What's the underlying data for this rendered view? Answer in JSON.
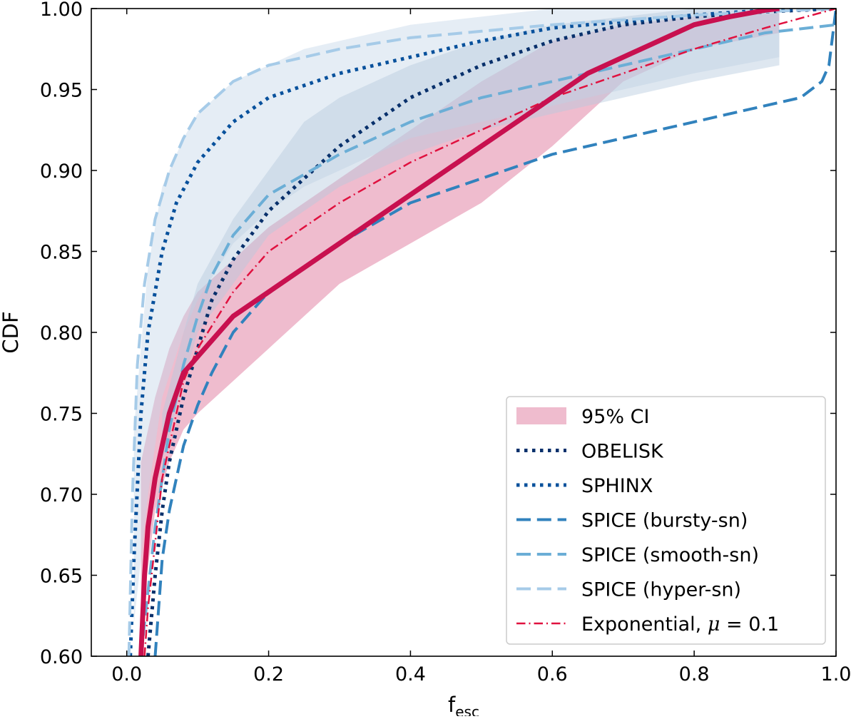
{
  "chart_data": {
    "type": "line",
    "title": "",
    "xlabel": {
      "base": "f",
      "sub": "esc"
    },
    "ylabel": "CDF",
    "xlim": [
      -0.05,
      1.0
    ],
    "ylim": [
      0.6,
      1.0
    ],
    "xticks": [
      0.0,
      0.2,
      0.4,
      0.6,
      0.8,
      1.0
    ],
    "xtick_labels": [
      "0.0",
      "0.2",
      "0.4",
      "0.6",
      "0.8",
      "1.0"
    ],
    "yticks": [
      0.6,
      0.65,
      0.7,
      0.75,
      0.8,
      0.85,
      0.9,
      0.95,
      1.0
    ],
    "ytick_labels": [
      "0.60",
      "0.65",
      "0.70",
      "0.75",
      "0.80",
      "0.85",
      "0.90",
      "0.95",
      "1.00"
    ],
    "grid": false,
    "legend_position": "lower-right",
    "bands": [
      {
        "name": "95% CI",
        "color": "#e58fae",
        "opacity": 0.6,
        "x": [
          0.02,
          0.04,
          0.06,
          0.08,
          0.1,
          0.15,
          0.2,
          0.25,
          0.3,
          0.4,
          0.5,
          0.6,
          0.7,
          0.8,
          0.92
        ],
        "lower": [
          0.62,
          0.69,
          0.72,
          0.74,
          0.75,
          0.77,
          0.79,
          0.81,
          0.83,
          0.855,
          0.88,
          0.915,
          0.955,
          0.975,
          0.985
        ],
        "upper": [
          0.72,
          0.76,
          0.79,
          0.81,
          0.825,
          0.845,
          0.865,
          0.88,
          0.895,
          0.925,
          0.955,
          0.98,
          0.99,
          0.995,
          0.997
        ]
      },
      {
        "name": "",
        "color": "#c5d6e8",
        "opacity": 0.45,
        "x": [
          0.01,
          0.03,
          0.05,
          0.08,
          0.1,
          0.15,
          0.2,
          0.25,
          0.3,
          0.4,
          0.5,
          0.6,
          0.7,
          0.8,
          0.92
        ],
        "lower": [
          0.62,
          0.7,
          0.76,
          0.8,
          0.82,
          0.855,
          0.875,
          0.89,
          0.9,
          0.92,
          0.93,
          0.94,
          0.95,
          0.96,
          0.97
        ],
        "upper": [
          0.74,
          0.84,
          0.89,
          0.92,
          0.935,
          0.955,
          0.965,
          0.975,
          0.98,
          0.99,
          0.995,
          1.0,
          1.0,
          1.0,
          1.0
        ]
      },
      {
        "name": "",
        "color": "#b5c9de",
        "opacity": 0.45,
        "x": [
          0.05,
          0.08,
          0.1,
          0.15,
          0.2,
          0.25,
          0.3,
          0.4,
          0.5,
          0.6,
          0.7,
          0.8,
          0.92
        ],
        "lower": [
          0.72,
          0.77,
          0.8,
          0.83,
          0.86,
          0.875,
          0.89,
          0.91,
          0.925,
          0.935,
          0.945,
          0.955,
          0.965
        ],
        "upper": [
          0.75,
          0.8,
          0.83,
          0.87,
          0.9,
          0.93,
          0.945,
          0.965,
          0.98,
          0.99,
          0.995,
          1.0,
          1.0
        ]
      }
    ],
    "series": [
      {
        "name": "OBELISK",
        "color": "#08306b",
        "style": "dotted",
        "width": 5,
        "x": [
          0.03,
          0.04,
          0.05,
          0.06,
          0.08,
          0.1,
          0.12,
          0.15,
          0.2,
          0.25,
          0.3,
          0.35,
          0.4,
          0.5,
          0.6,
          0.7,
          0.8,
          0.9,
          1.0
        ],
        "y": [
          0.6,
          0.65,
          0.69,
          0.72,
          0.76,
          0.79,
          0.82,
          0.845,
          0.875,
          0.895,
          0.915,
          0.93,
          0.945,
          0.965,
          0.98,
          0.99,
          0.995,
          0.998,
          1.0
        ]
      },
      {
        "name": "SPHINX",
        "color": "#08519c",
        "style": "dotted",
        "width": 5,
        "x": [
          0.005,
          0.01,
          0.02,
          0.03,
          0.05,
          0.07,
          0.1,
          0.15,
          0.2,
          0.3,
          0.4,
          0.5,
          0.6,
          0.7,
          0.8,
          0.9,
          1.0
        ],
        "y": [
          0.6,
          0.66,
          0.75,
          0.8,
          0.85,
          0.88,
          0.905,
          0.93,
          0.945,
          0.96,
          0.97,
          0.98,
          0.988,
          0.992,
          0.996,
          0.999,
          1.0
        ]
      },
      {
        "name": "SPICE (bursty-sn)",
        "color": "#3182bd",
        "style": "dashed",
        "width": 4,
        "x": [
          0.04,
          0.05,
          0.06,
          0.08,
          0.1,
          0.12,
          0.15,
          0.2,
          0.3,
          0.4,
          0.5,
          0.6,
          0.7,
          0.8,
          0.9,
          0.95,
          0.98,
          0.99,
          1.0
        ],
        "y": [
          0.6,
          0.66,
          0.69,
          0.73,
          0.755,
          0.775,
          0.8,
          0.825,
          0.855,
          0.88,
          0.895,
          0.91,
          0.92,
          0.93,
          0.94,
          0.945,
          0.955,
          0.965,
          1.0
        ]
      },
      {
        "name": "SPICE (smooth-sn)",
        "color": "#6baed6",
        "style": "dashed",
        "width": 4,
        "x": [
          0.02,
          0.03,
          0.04,
          0.06,
          0.08,
          0.1,
          0.12,
          0.15,
          0.2,
          0.3,
          0.4,
          0.5,
          0.6,
          0.7,
          0.8,
          0.9,
          1.0
        ],
        "y": [
          0.6,
          0.64,
          0.68,
          0.74,
          0.78,
          0.81,
          0.835,
          0.86,
          0.885,
          0.91,
          0.93,
          0.945,
          0.955,
          0.965,
          0.975,
          0.985,
          0.99
        ]
      },
      {
        "name": "SPICE (hyper-sn)",
        "color": "#a6cbe8",
        "style": "dashed",
        "width": 4,
        "x": [
          0.003,
          0.008,
          0.015,
          0.025,
          0.04,
          0.06,
          0.08,
          0.1,
          0.15,
          0.2,
          0.3,
          0.4,
          0.5,
          0.6,
          0.7,
          0.8,
          0.9,
          1.0
        ],
        "y": [
          0.6,
          0.7,
          0.78,
          0.83,
          0.87,
          0.9,
          0.92,
          0.935,
          0.955,
          0.965,
          0.975,
          0.982,
          0.986,
          0.99,
          0.993,
          0.996,
          0.998,
          1.0
        ]
      },
      {
        "name": "Exponential, μ = 0.1",
        "label_main": "Exponential, ",
        "label_mu": "μ",
        "label_eq": " = 0.1",
        "color": "#e0113f",
        "style": "dashdot",
        "width": 2.5,
        "x": [
          0.025,
          0.03,
          0.04,
          0.05,
          0.06,
          0.08,
          0.1,
          0.15,
          0.2,
          0.3,
          0.4,
          0.5,
          0.6,
          0.7,
          0.8,
          0.9,
          1.0
        ],
        "y": [
          0.6,
          0.63,
          0.67,
          0.71,
          0.73,
          0.77,
          0.79,
          0.825,
          0.85,
          0.88,
          0.905,
          0.925,
          0.945,
          0.96,
          0.975,
          0.988,
          1.0
        ]
      },
      {
        "name": "",
        "color": "#c8104f",
        "style": "solid",
        "width": 7,
        "x": [
          0.02,
          0.025,
          0.03,
          0.04,
          0.05,
          0.06,
          0.08,
          0.1,
          0.12,
          0.15,
          0.2,
          0.25,
          0.3,
          0.35,
          0.4,
          0.45,
          0.5,
          0.55,
          0.6,
          0.65,
          0.7,
          0.75,
          0.8,
          0.85,
          0.9,
          0.92
        ],
        "y": [
          0.6,
          0.65,
          0.68,
          0.71,
          0.73,
          0.75,
          0.775,
          0.785,
          0.795,
          0.81,
          0.825,
          0.84,
          0.855,
          0.87,
          0.885,
          0.9,
          0.915,
          0.93,
          0.945,
          0.96,
          0.97,
          0.98,
          0.99,
          0.995,
          0.999,
          1.0
        ]
      }
    ],
    "legend": [
      {
        "kind": "band",
        "ref": "95% CI",
        "label": "95% CI"
      },
      {
        "kind": "line",
        "ref": "OBELISK",
        "label": "OBELISK"
      },
      {
        "kind": "line",
        "ref": "SPHINX",
        "label": "SPHINX"
      },
      {
        "kind": "line",
        "ref": "SPICE (bursty-sn)",
        "label": "SPICE (bursty-sn)"
      },
      {
        "kind": "line",
        "ref": "SPICE (smooth-sn)",
        "label": "SPICE (smooth-sn)"
      },
      {
        "kind": "line",
        "ref": "SPICE (hyper-sn)",
        "label": "SPICE (hyper-sn)"
      },
      {
        "kind": "line",
        "ref": "Exponential, μ = 0.1",
        "label": "Exponential, μ = 0.1"
      }
    ]
  }
}
